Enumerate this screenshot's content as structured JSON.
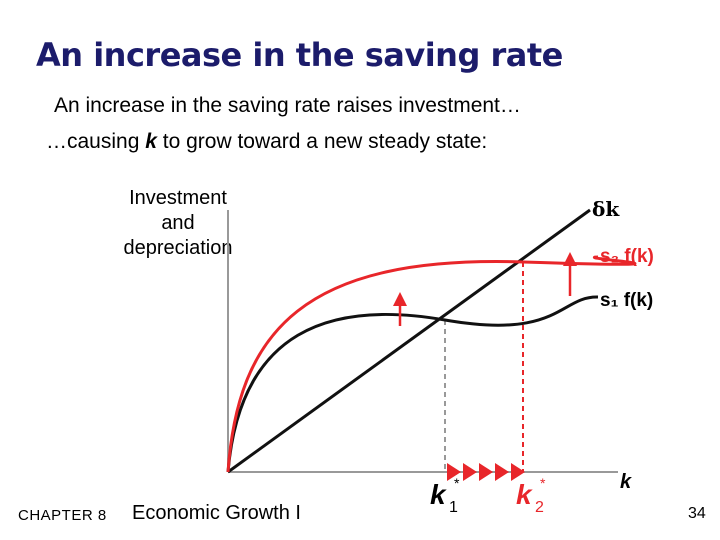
{
  "slide": {
    "title": "An increase in the saving rate",
    "bullet1": "An increase in the saving rate raises investment…",
    "bullet2_pre": "…causing ",
    "bullet2_var": "k",
    "bullet2_post": " to grow toward a new steady state:"
  },
  "diagram": {
    "yaxis_label": [
      "Investment",
      "and",
      "depreciation"
    ],
    "xaxis_label": "k",
    "depreciation_label": "δk",
    "s2_label": "s₂ f(k)",
    "s1_label": "s₁ f(k)",
    "k1_label": "k",
    "k1_sub": "1",
    "k2_label": "k",
    "k2_sub": "2",
    "star": "*",
    "colors": {
      "new_curve": "#e8262a",
      "old_curve": "#111111",
      "axis": "#999999",
      "dashed": "#999999",
      "arrow_red": "#e8262a"
    }
  },
  "footer": {
    "chapter": "CHAPTER 8",
    "course": "Economic Growth I",
    "page": "34"
  }
}
